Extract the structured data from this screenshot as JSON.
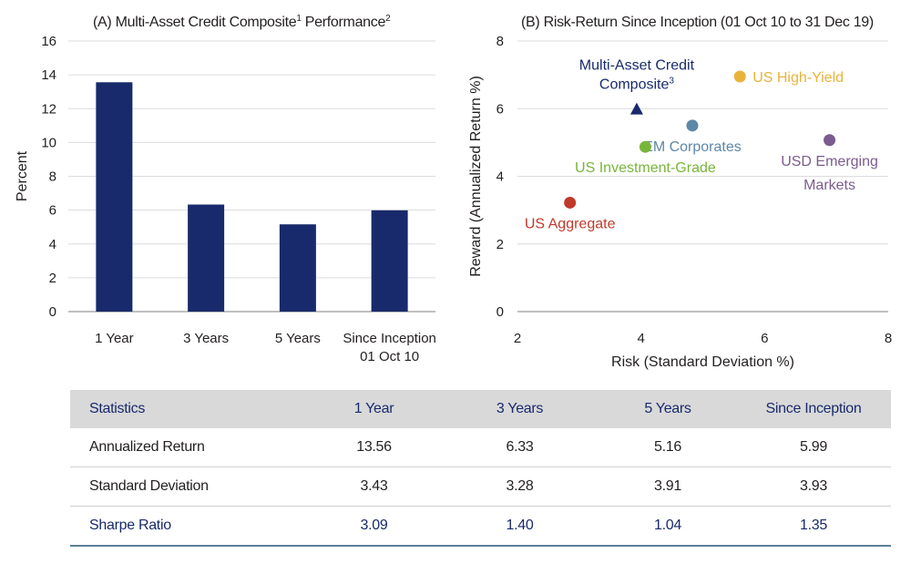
{
  "chart_data": [
    {
      "type": "bar",
      "title": "(A) Multi-Asset Credit Composite",
      "title_sup1": "1",
      "title_mid": " Performance",
      "title_sup2": "2",
      "ylabel": "Percent",
      "ylim": [
        0,
        16
      ],
      "yticks": [
        "0",
        "2",
        "4",
        "6",
        "8",
        "10",
        "12",
        "14",
        "16"
      ],
      "categories": [
        [
          "1 Year"
        ],
        [
          "3 Years"
        ],
        [
          "5 Years"
        ],
        [
          "Since Inception",
          "01 Oct 10"
        ]
      ],
      "values": [
        13.56,
        6.33,
        5.16,
        5.99
      ],
      "bar_color": "#182a6b",
      "grid": true
    },
    {
      "type": "scatter",
      "title": "(B) Risk-Return Since Inception (01 Oct 10 to 31 Dec 19)",
      "xlabel": "Risk (Standard Deviation %)",
      "ylabel": "Reward (Annualized Return %)",
      "xlim": [
        2,
        8
      ],
      "ylim": [
        0,
        8
      ],
      "xticks": [
        "2",
        "4",
        "6",
        "8"
      ],
      "yticks": [
        "0",
        "2",
        "4",
        "6",
        "8"
      ],
      "grid": true,
      "points": [
        {
          "label": [
            "Multi-Asset Credit",
            "Composite"
          ],
          "label_sup": "3",
          "x": 3.93,
          "y": 5.99,
          "marker": "triangle",
          "color": "#182a6b",
          "label_pos": "above"
        },
        {
          "label": [
            "US High-Yield"
          ],
          "x": 5.6,
          "y": 6.95,
          "marker": "circle",
          "color": "#e9b33a",
          "label_pos": "right"
        },
        {
          "label": [
            "EM Corporates"
          ],
          "x": 4.83,
          "y": 5.5,
          "marker": "circle",
          "color": "#5d87a6",
          "label_pos": "below"
        },
        {
          "label": [
            "US Investment-Grade"
          ],
          "x": 4.07,
          "y": 4.87,
          "marker": "circle",
          "color": "#79b53b",
          "label_pos": "below"
        },
        {
          "label": [
            "USD Emerging",
            "Markets"
          ],
          "x": 7.05,
          "y": 5.07,
          "marker": "circle",
          "color": "#7b5c8e",
          "label_pos": "below"
        },
        {
          "label": [
            "US Aggregate"
          ],
          "x": 2.85,
          "y": 3.22,
          "marker": "circle",
          "color": "#c0392b",
          "label_pos": "below"
        }
      ]
    }
  ],
  "table": {
    "headers": [
      "Statistics",
      "1 Year",
      "3 Years",
      "5 Years",
      "Since Inception"
    ],
    "rows": [
      [
        "Annualized Return",
        "13.56",
        "6.33",
        "5.16",
        "5.99"
      ],
      [
        "Standard Deviation",
        "3.43",
        "3.28",
        "3.91",
        "3.93"
      ],
      [
        "Sharpe Ratio",
        "3.09",
        "1.40",
        "1.04",
        "1.35"
      ]
    ]
  }
}
